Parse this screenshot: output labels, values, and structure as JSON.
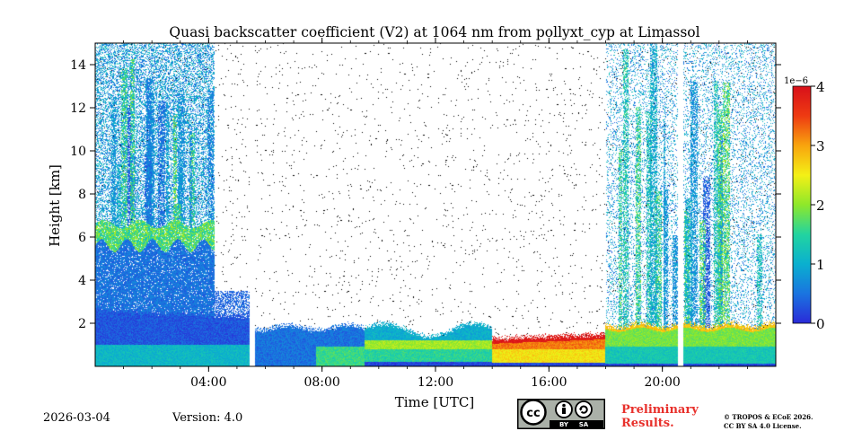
{
  "chart_data": {
    "type": "heatmap",
    "title": "Quasi backscatter coefficient (V2) at 1064 nm from pollyxt_cyp at Limassol",
    "xlabel": "Time [UTC]",
    "ylabel": "Height [km]",
    "xlim_hours": [
      0,
      24
    ],
    "ylim_km": [
      0,
      15
    ],
    "x_ticks": [
      {
        "value": 4,
        "label": "04:00"
      },
      {
        "value": 8,
        "label": "08:00"
      },
      {
        "value": 12,
        "label": "12:00"
      },
      {
        "value": 16,
        "label": "16:00"
      },
      {
        "value": 20,
        "label": "20:00"
      }
    ],
    "y_ticks": [
      {
        "value": 2,
        "label": "2"
      },
      {
        "value": 4,
        "label": "4"
      },
      {
        "value": 6,
        "label": "6"
      },
      {
        "value": 8,
        "label": "8"
      },
      {
        "value": 10,
        "label": "10"
      },
      {
        "value": 12,
        "label": "12"
      },
      {
        "value": 14,
        "label": "14"
      }
    ],
    "colorbar": {
      "min": 0,
      "max": 4,
      "scale_label": "1e−6",
      "ticks": [
        {
          "value": 0,
          "label": "0"
        },
        {
          "value": 1,
          "label": "1"
        },
        {
          "value": 2,
          "label": "2"
        },
        {
          "value": 3,
          "label": "3"
        },
        {
          "value": 4,
          "label": "4"
        }
      ],
      "colormap": [
        "#2a2ad8",
        "#1a74e0",
        "#0ab0cf",
        "#22d4a0",
        "#8ee82a",
        "#f4f016",
        "#f8a40e",
        "#ee3a12",
        "#d8101a"
      ]
    },
    "data_gaps_hours": [
      5.55,
      20.65
    ],
    "regions": [
      {
        "name": "night-aerosol-layer",
        "t": [
          0,
          5.5
        ],
        "h": [
          0.2,
          2.6
        ],
        "value": 0.3
      },
      {
        "name": "near-ground-layer-early",
        "t": [
          0,
          5.5
        ],
        "h": [
          0.0,
          1.0
        ],
        "value": 1.1
      },
      {
        "name": "elevated-layer",
        "t": [
          0,
          4.2
        ],
        "h": [
          2.6,
          6.6
        ],
        "value": 0.5
      },
      {
        "name": "elevated-cloud",
        "t": [
          0,
          4.0
        ],
        "h": [
          5.6,
          6.6
        ],
        "value": 1.7
      },
      {
        "name": "morning-boundary-layer",
        "t": [
          5.6,
          9.5
        ],
        "h": [
          0.0,
          2.2
        ],
        "value": 0.5
      },
      {
        "name": "daytime-boundary-layer",
        "t": [
          9.5,
          14.0
        ],
        "h": [
          0.0,
          1.8
        ],
        "value": 1.5
      },
      {
        "name": "afternoon-boundary-layer",
        "t": [
          14.0,
          18.0
        ],
        "h": [
          0.0,
          1.3
        ],
        "value": 3.2
      },
      {
        "name": "evening-boundary-layer",
        "t": [
          18.0,
          24.0
        ],
        "h": [
          0.0,
          1.9
        ],
        "value": 1.9
      }
    ]
  },
  "footer": {
    "date": "2026-03-04",
    "version": "Version: 4.0",
    "cc_by": "BY",
    "cc_sa": "SA",
    "preliminary_line1": "Preliminary",
    "preliminary_line2": "Results.",
    "copyright_line1": "© TROPOS & ECoE 2026.",
    "copyright_line2": "CC BY SA 4.0 License."
  },
  "colors": {
    "preliminary": "#e8302b",
    "badge_bg": "#aab0a8"
  }
}
